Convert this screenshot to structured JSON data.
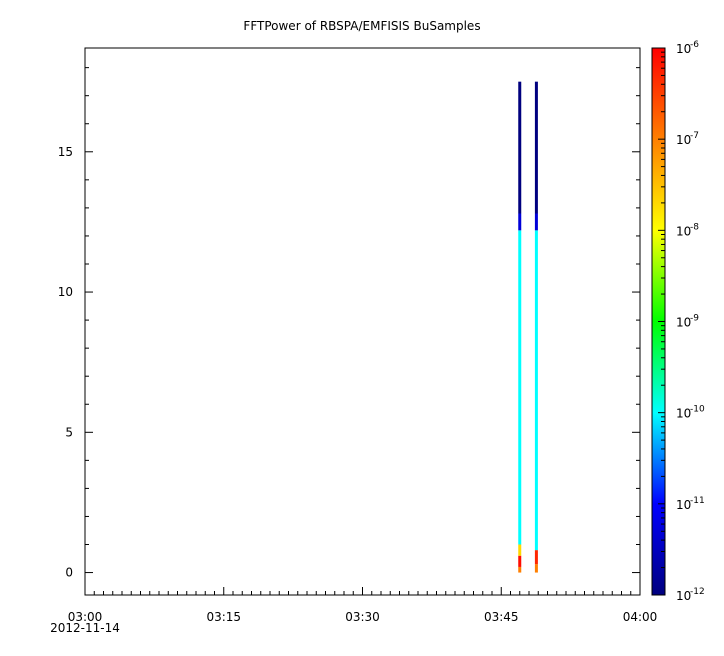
{
  "chart_data": {
    "type": "heatmap",
    "title": "FFTPower of RBSPA/EMFISIS  BuSamples",
    "x_date_label": "2012-11-14",
    "x_ticks": [
      "03:00",
      "03:15",
      "03:30",
      "03:45",
      "04:00"
    ],
    "x_range_minutes": [
      0,
      60
    ],
    "y_range": [
      -0.8,
      18.7
    ],
    "y_ticks": [
      0,
      5,
      10,
      15
    ],
    "grid": false,
    "colorbar": {
      "scale": "log",
      "range": [
        1e-12,
        1e-06
      ],
      "base_label": "10",
      "exponents": [
        "-6",
        "-7",
        "-8",
        "-9",
        "-10",
        "-11",
        "-12"
      ],
      "colormap": [
        "#00007f",
        "#0000ff",
        "#00ffff",
        "#00ff00",
        "#ffff00",
        "#ff7f00",
        "#ff0000"
      ]
    },
    "series": [
      {
        "x_minutes": 47.0,
        "segments": [
          {
            "y0": 0.0,
            "y1": 0.2,
            "power": 1e-07
          },
          {
            "y0": 0.2,
            "y1": 0.6,
            "power": 8e-07
          },
          {
            "y0": 0.6,
            "y1": 1.0,
            "power": 2e-08
          },
          {
            "y0": 1.0,
            "y1": 12.2,
            "power": 1e-10
          },
          {
            "y0": 12.2,
            "y1": 12.8,
            "power": 5e-12
          },
          {
            "y0": 12.8,
            "y1": 17.5,
            "power": 1e-12
          }
        ]
      },
      {
        "x_minutes": 48.8,
        "segments": [
          {
            "y0": 0.0,
            "y1": 0.3,
            "power": 1e-07
          },
          {
            "y0": 0.3,
            "y1": 0.8,
            "power": 5e-07
          },
          {
            "y0": 0.8,
            "y1": 12.2,
            "power": 1e-10
          },
          {
            "y0": 12.2,
            "y1": 12.8,
            "power": 5e-12
          },
          {
            "y0": 12.8,
            "y1": 17.5,
            "power": 1e-12
          }
        ]
      }
    ]
  }
}
